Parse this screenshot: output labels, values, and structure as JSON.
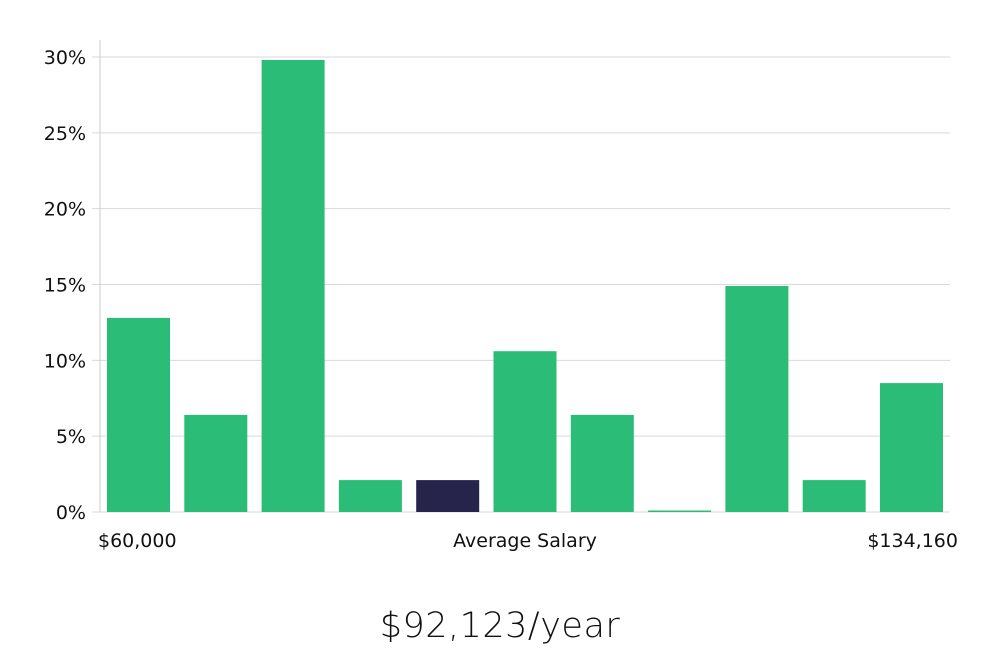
{
  "chart_data": {
    "type": "bar",
    "categories": [
      "1",
      "2",
      "3",
      "4",
      "5",
      "6",
      "7",
      "8",
      "9",
      "10",
      "11"
    ],
    "values": [
      12.8,
      6.4,
      29.8,
      2.1,
      2.1,
      10.6,
      6.4,
      0.0,
      14.9,
      2.1,
      8.5
    ],
    "highlight_index": 4,
    "y_ticks": [
      "0%",
      "5%",
      "10%",
      "15%",
      "20%",
      "25%",
      "30%"
    ],
    "ylim": [
      0,
      30
    ],
    "x_labels": {
      "left": "$60,000",
      "center": "Average Salary",
      "right": "$134,160"
    },
    "grid": true,
    "colors": {
      "bar": "#2bbd77",
      "highlight": "#26244a",
      "grid": "#d9d9d9",
      "axis": "#cccccc"
    }
  },
  "caption": "$92,123/year"
}
